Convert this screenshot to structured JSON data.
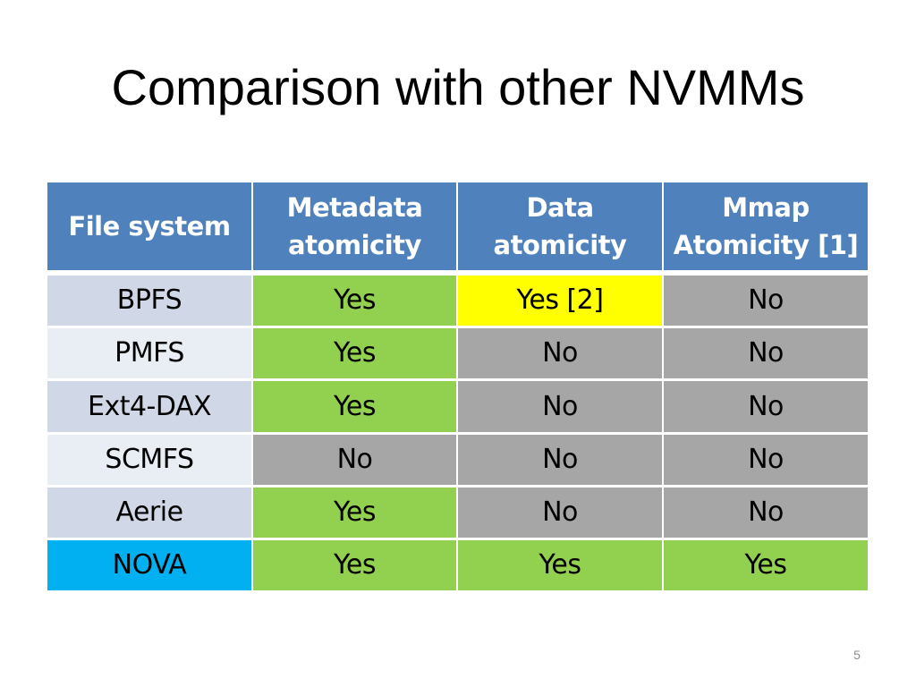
{
  "slide": {
    "title": "Comparison with other NVMMs",
    "page_number": "5"
  },
  "table": {
    "headers": [
      [
        "File system"
      ],
      [
        "Metadata",
        "atomicity"
      ],
      [
        "Data",
        "atomicity"
      ],
      [
        "Mmap",
        "Atomicity [1]"
      ]
    ],
    "rows": [
      {
        "system": "BPFS",
        "metadata": "Yes",
        "data": "Yes [2]",
        "mmap": "No"
      },
      {
        "system": "PMFS",
        "metadata": "Yes",
        "data": "No",
        "mmap": "No"
      },
      {
        "system": "Ext4-DAX",
        "metadata": "Yes",
        "data": "No",
        "mmap": "No"
      },
      {
        "system": "SCMFS",
        "metadata": "No",
        "data": "No",
        "mmap": "No"
      },
      {
        "system": "Aerie",
        "metadata": "Yes",
        "data": "No",
        "mmap": "No"
      },
      {
        "system": "NOVA",
        "metadata": "Yes",
        "data": "Yes",
        "mmap": "Yes"
      }
    ]
  },
  "colors": {
    "header": "#4f81bd",
    "yes": "#92d050",
    "no": "#a6a6a6",
    "partial_yes": "#ffff00",
    "highlight_system": "#00b0f0",
    "row_label_odd": "#d0d8e8",
    "row_label_even": "#e9edf4"
  }
}
